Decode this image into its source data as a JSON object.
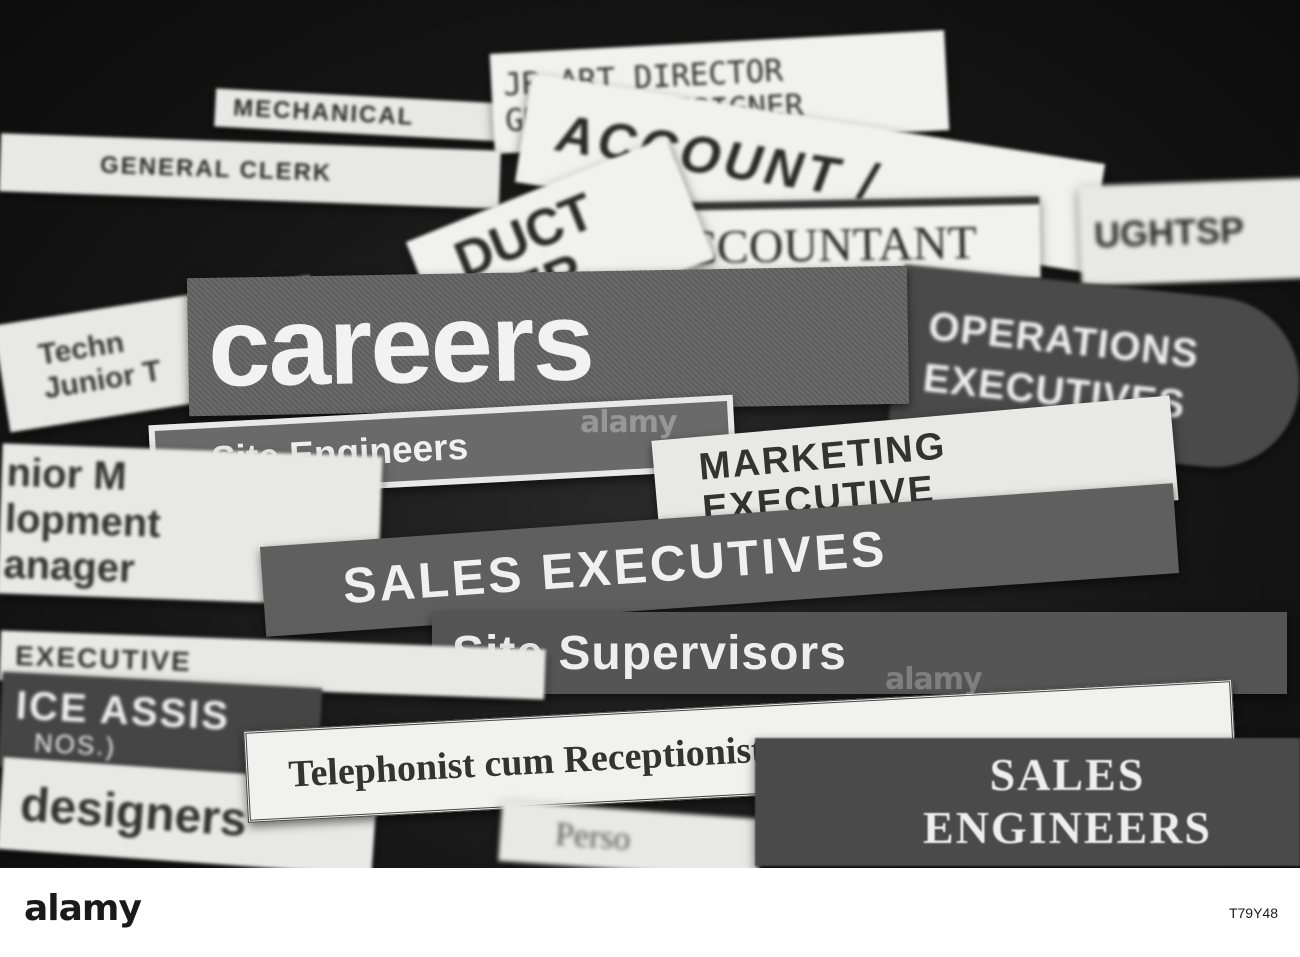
{
  "clippings": {
    "jr_art_director": "JR ART DIRECTOR",
    "graphic_designer": "GRAPHIC DESIGNER",
    "mechanical": "MECHANICAL",
    "general_clerk": "GENERAL CLERK",
    "account": "ACCOUNT /",
    "accountant": "ACCOUNTANT",
    "product": "DUCT",
    "product_line2": "GER",
    "draughtsp": "UGHTSP",
    "tech": "Techn",
    "junior_t": "Junior T",
    "careers": "careers",
    "operations": "OPERATIONS",
    "executives": "EXECUTIVES",
    "site_engineers": "Site Engineers",
    "junior_m": "nior M",
    "development": "lopment",
    "manager": "anager",
    "marketing": "MARKETING",
    "marketing_executive": "EXECUTIVE",
    "sales_executives": "SALES EXECUTIVES",
    "site_supervisors": "Site  Supervisors",
    "executive": "EXECUTIVE",
    "office_assist": "ICE ASSIS",
    "nos": "NOS.)",
    "telephonist": "Telephonist cum Receptionist",
    "sales_engineers_1": "SALES",
    "sales_engineers_2": "ENGINEERS",
    "designers": "designers",
    "perso": "Perso"
  },
  "footer": {
    "logo": "alamy",
    "image_id": "T79Y48"
  },
  "watermark": "alamy"
}
